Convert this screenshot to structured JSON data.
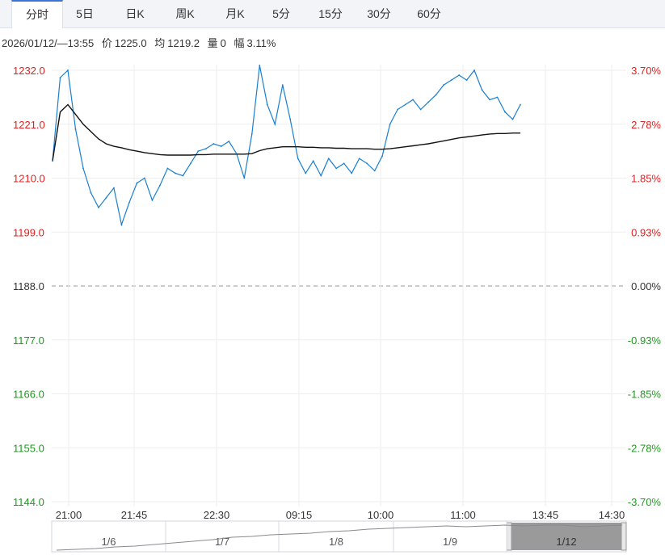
{
  "tabs": [
    {
      "label": "分时",
      "active": true
    },
    {
      "label": "5日",
      "active": false
    },
    {
      "label": "日K",
      "active": false
    },
    {
      "label": "周K",
      "active": false
    },
    {
      "label": "月K",
      "active": false
    },
    {
      "label": "5分",
      "active": false
    },
    {
      "label": "15分",
      "active": false
    },
    {
      "label": "30分",
      "active": false
    },
    {
      "label": "60分",
      "active": false
    }
  ],
  "info": {
    "datetime": "2026/01/12/—13:55",
    "price_label": "价",
    "price": "1225.0",
    "avg_label": "均",
    "avg": "1219.2",
    "volume_label": "量",
    "volume": "0",
    "change_label": "幅",
    "change": "3.11%"
  },
  "colors": {
    "up": "#e02020",
    "down": "#1e9a1e",
    "neutral": "#333333",
    "price_line": "#1a7fd0",
    "avg_line": "#111111",
    "grid": "#eeeeee",
    "active_tab": "#3a76d8"
  },
  "chart_data": {
    "type": "line",
    "title": "",
    "xlabel": "",
    "ylabel": "",
    "ylim": [
      1144.0,
      1232.0
    ],
    "prev_close": 1188.0,
    "y_ticks_left": [
      "1232.0",
      "1221.0",
      "1210.0",
      "1199.0",
      "1188.0",
      "1177.0",
      "1166.0",
      "1155.0",
      "1144.0"
    ],
    "y_ticks_right": [
      "3.70%",
      "2.78%",
      "1.85%",
      "0.93%",
      "0.00%",
      "-0.93%",
      "-1.85%",
      "-2.78%",
      "-3.70%"
    ],
    "x_ticks": [
      "21:00",
      "21:45",
      "22:30",
      "09:15",
      "10:00",
      "11:00",
      "13:45",
      "14:30"
    ],
    "x": [
      "21:00",
      "21:05",
      "21:10",
      "21:15",
      "21:20",
      "21:25",
      "21:30",
      "21:35",
      "21:40",
      "21:45",
      "21:50",
      "21:55",
      "22:00",
      "22:05",
      "22:10",
      "22:15",
      "22:20",
      "22:25",
      "22:30",
      "22:35",
      "22:40",
      "22:45",
      "22:50",
      "22:55",
      "23:00",
      "09:00",
      "09:05",
      "09:10",
      "09:15",
      "09:20",
      "09:25",
      "09:30",
      "09:35",
      "09:40",
      "09:45",
      "09:50",
      "09:55",
      "10:00",
      "10:05",
      "10:10",
      "10:15",
      "10:20",
      "10:25",
      "10:30",
      "10:35",
      "10:40",
      "10:45",
      "10:50",
      "10:55",
      "11:00",
      "11:05",
      "11:10",
      "11:15",
      "11:20",
      "11:25",
      "11:30",
      "13:30",
      "13:35",
      "13:40",
      "13:45",
      "13:50",
      "13:55"
    ],
    "series": [
      {
        "key": "price",
        "values": [
          1213.5,
          1230.5,
          1232.0,
          1220.0,
          1212.0,
          1207.0,
          1204.0,
          1206.0,
          1208.0,
          1200.5,
          1205.0,
          1209.0,
          1210.0,
          1205.5,
          1208.5,
          1212.0,
          1211.0,
          1210.5,
          1213.0,
          1215.5,
          1216.0,
          1217.0,
          1216.5,
          1217.5,
          1215.0,
          1210.0,
          1219.0,
          1233.0,
          1225.0,
          1221.0,
          1229.0,
          1222.0,
          1214.0,
          1211.0,
          1213.5,
          1210.5,
          1214.0,
          1212.0,
          1213.0,
          1211.0,
          1214.0,
          1213.0,
          1211.5,
          1214.5,
          1221.0,
          1224.0,
          1225.0,
          1226.0,
          1224.0,
          1225.5,
          1227.0,
          1229.0,
          1230.0,
          1231.0,
          1230.0,
          1232.0,
          1228.0,
          1226.0,
          1226.5,
          1223.5,
          1222.0,
          1225.0
        ]
      },
      {
        "key": "avg",
        "values": [
          1213.5,
          1223.5,
          1225.0,
          1223.0,
          1221.0,
          1219.5,
          1218.0,
          1217.0,
          1216.5,
          1216.2,
          1215.8,
          1215.5,
          1215.2,
          1215.0,
          1214.8,
          1214.7,
          1214.7,
          1214.7,
          1214.7,
          1214.8,
          1214.8,
          1214.9,
          1214.9,
          1214.9,
          1214.9,
          1214.9,
          1215.0,
          1215.6,
          1216.0,
          1216.2,
          1216.4,
          1216.4,
          1216.4,
          1216.3,
          1216.3,
          1216.2,
          1216.2,
          1216.1,
          1216.1,
          1216.0,
          1216.0,
          1216.0,
          1215.9,
          1215.9,
          1216.0,
          1216.2,
          1216.4,
          1216.6,
          1216.8,
          1217.0,
          1217.3,
          1217.6,
          1217.9,
          1218.2,
          1218.4,
          1218.6,
          1218.8,
          1219.0,
          1219.1,
          1219.1,
          1219.2,
          1219.2
        ]
      }
    ],
    "grid": true,
    "navigator": {
      "labels": [
        "1/6",
        "1/7",
        "1/8",
        "1/9",
        "1/12"
      ],
      "selected": "1/12"
    }
  }
}
